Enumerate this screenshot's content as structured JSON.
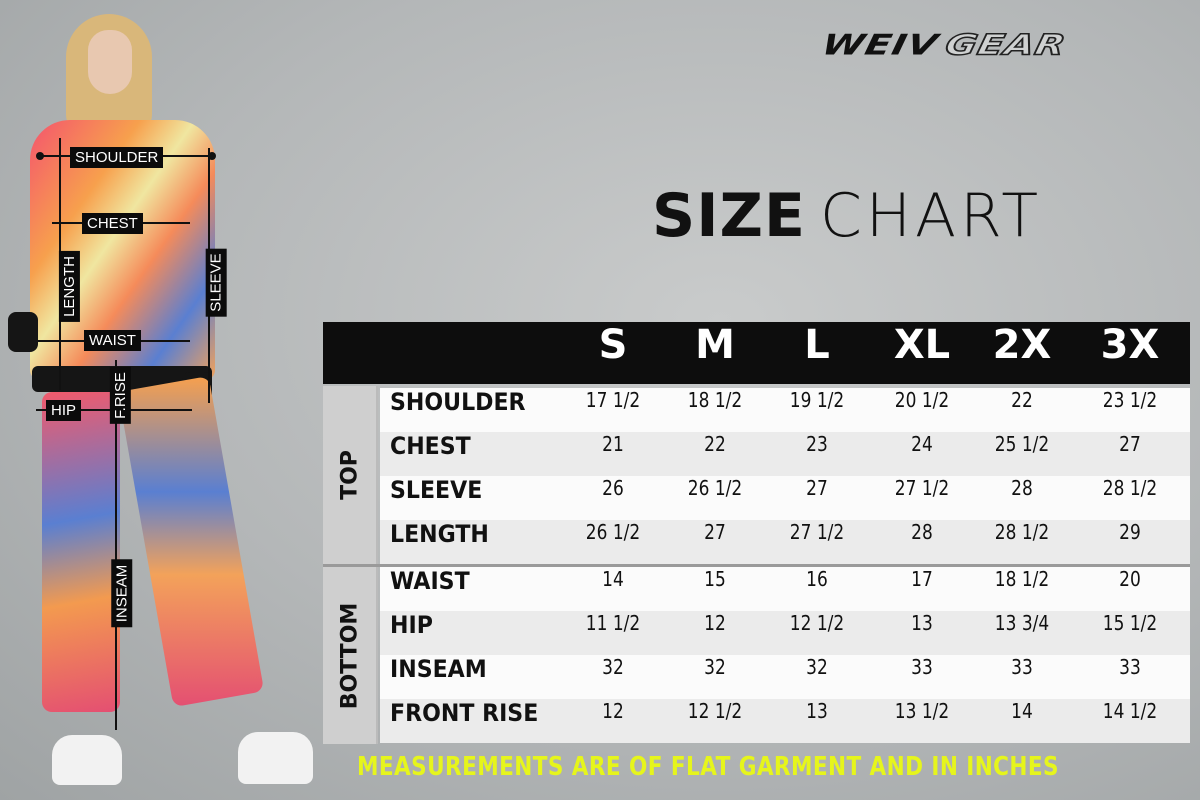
{
  "brand": {
    "logo_part1": "WEIV",
    "logo_part2": "GEAR"
  },
  "title": {
    "bold": "SIZE",
    "light": "CHART"
  },
  "table": {
    "sizes": [
      "S",
      "M",
      "L",
      "XL",
      "2X",
      "3X"
    ],
    "sections": [
      {
        "label": "TOP",
        "rows": [
          {
            "label": "SHOULDER",
            "values": [
              "17 1/2",
              "18 1/2",
              "19 1/2",
              "20 1/2",
              "22",
              "23 1/2"
            ]
          },
          {
            "label": "CHEST",
            "values": [
              "21",
              "22",
              "23",
              "24",
              "25 1/2",
              "27"
            ]
          },
          {
            "label": "SLEEVE",
            "values": [
              "26",
              "26 1/2",
              "27",
              "27 1/2",
              "28",
              "28 1/2"
            ]
          },
          {
            "label": "LENGTH",
            "values": [
              "26 1/2",
              "27",
              "27 1/2",
              "28",
              "28 1/2",
              "29"
            ]
          }
        ]
      },
      {
        "label": "BOTTOM",
        "rows": [
          {
            "label": "WAIST",
            "values": [
              "14",
              "15",
              "16",
              "17",
              "18 1/2",
              "20"
            ]
          },
          {
            "label": "HIP",
            "values": [
              "11 1/2",
              "12",
              "12 1/2",
              "13",
              "13 3/4",
              "15 1/2"
            ]
          },
          {
            "label": "INSEAM",
            "values": [
              "32",
              "32",
              "32",
              "33",
              "33",
              "33"
            ]
          },
          {
            "label": "FRONT RISE",
            "values": [
              "12",
              "12 1/2",
              "13",
              "13 1/2",
              "14",
              "14 1/2"
            ]
          }
        ]
      }
    ]
  },
  "footer_note": "MEASUREMENTS ARE OF FLAT GARMENT AND IN INCHES",
  "figure_labels": {
    "shoulder": "SHOULDER",
    "chest": "CHEST",
    "length": "LENGTH",
    "sleeve": "SLEEVE",
    "waist": "WAIST",
    "front_rise": "F.RISE",
    "hip": "HIP",
    "inseam": "INSEAM"
  },
  "colors": {
    "header_bg": "#0d0d0d",
    "footer_text": "#e6f51c",
    "row_light": "#fbfbfb",
    "row_dark": "#ebebeb"
  }
}
